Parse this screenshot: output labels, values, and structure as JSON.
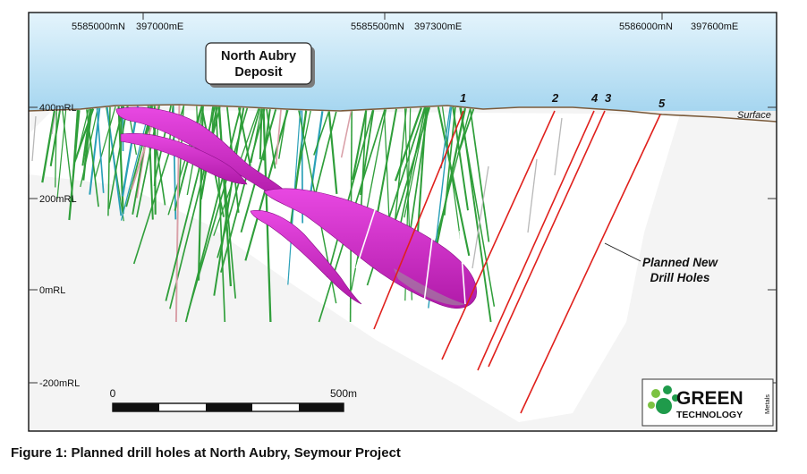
{
  "title": {
    "line1": "North Aubry",
    "line2": "Deposit"
  },
  "grid_top": [
    {
      "label": "5585000mN"
    },
    {
      "label": "397000mE"
    },
    {
      "label": "5585500mN"
    },
    {
      "label": "397300mE"
    },
    {
      "label": "5586000mN"
    },
    {
      "label": "397600mE"
    }
  ],
  "elevations": [
    {
      "label": "400mRL"
    },
    {
      "label": "200mRL"
    },
    {
      "label": "0mRL"
    },
    {
      "label": "-200mRL"
    }
  ],
  "surface_label": "Surface",
  "planned_holes": [
    {
      "label": "1"
    },
    {
      "label": "2"
    },
    {
      "label": "4"
    },
    {
      "label": "3"
    },
    {
      "label": "5"
    }
  ],
  "planned_label": {
    "line1": "Planned New",
    "line2": "Drill Holes"
  },
  "scale_bar": {
    "start": "0",
    "end": "500m"
  },
  "logo": {
    "word1": "GREEN",
    "word2": "TECHNOLOGY",
    "side": "Metals"
  },
  "colors": {
    "sky_top": "#e4f4fc",
    "sky_bottom": "#a6d6f0",
    "orebody": "#d81fd3",
    "planned_hole": "#e0201c",
    "existing_hole": "#2f9e3a",
    "existing_hole_alt": "#2aa0b8",
    "logo_green": "#1f9b4b"
  },
  "caption": "Figure 1: Planned drill holes at North Aubry, Seymour Project"
}
